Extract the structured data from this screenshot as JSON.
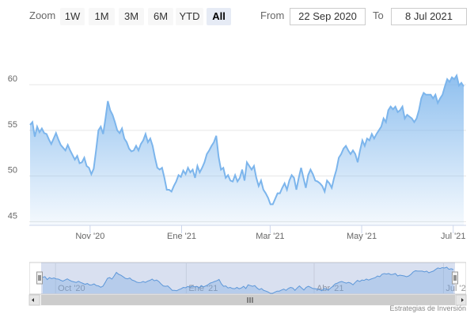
{
  "chart_data": {
    "type": "area",
    "range_selector": {
      "label": "Zoom",
      "buttons": [
        "1W",
        "1M",
        "3M",
        "6M",
        "YTD",
        "All"
      ],
      "selected": 5,
      "from_label": "From",
      "to_label": "To"
    },
    "xlim": [
      "22 Sep 2020",
      "8 Jul 2021"
    ],
    "xticks": [
      {
        "value": "2020-11",
        "label": "Nov '20"
      },
      {
        "value": "2021-01",
        "label": "Ene '21"
      },
      {
        "value": "2021-03",
        "label": "Mar '21"
      },
      {
        "value": "2021-05",
        "label": "May '21"
      },
      {
        "value": "2021-07",
        "label": "Jul '21"
      }
    ],
    "navigator_xticks": [
      {
        "value": "2020-10",
        "label": "Oct '20"
      },
      {
        "value": "2021-01",
        "label": "Ene '21"
      },
      {
        "value": "2021-04",
        "label": "Abr '21"
      },
      {
        "value": "2021-07",
        "label": "Jul '21"
      }
    ],
    "ylim": [
      44.6,
      65.2
    ],
    "yticks": [
      45,
      50,
      55,
      60
    ],
    "grid": true,
    "color": "#7cb5ec",
    "credits": "Estrategias de Inversión",
    "values": [
      55.6,
      55.9,
      54.3,
      55.4,
      54.8,
      55.2,
      54.7,
      54.6,
      54.0,
      53.5,
      54.1,
      54.7,
      54.0,
      53.4,
      53.1,
      52.8,
      53.4,
      52.8,
      52.3,
      51.8,
      52.2,
      51.4,
      51.5,
      52.0,
      51.1,
      50.9,
      50.2,
      50.8,
      52.8,
      55.0,
      55.4,
      54.6,
      56.3,
      58.2,
      57.2,
      56.7,
      55.9,
      55.0,
      54.7,
      55.2,
      54.1,
      53.7,
      53.0,
      52.7,
      52.8,
      53.3,
      52.8,
      53.5,
      53.9,
      54.6,
      53.7,
      54.1,
      53.3,
      52.0,
      50.9,
      50.7,
      50.9,
      49.8,
      48.5,
      48.5,
      48.3,
      48.9,
      49.4,
      50.1,
      49.9,
      50.6,
      50.2,
      50.9,
      50.4,
      50.7,
      49.8,
      51.1,
      50.4,
      50.9,
      51.5,
      52.4,
      52.8,
      53.3,
      53.7,
      54.4,
      52.1,
      50.7,
      50.9,
      49.8,
      50.1,
      49.5,
      49.4,
      50.1,
      49.4,
      49.8,
      50.7,
      49.5,
      51.5,
      51.1,
      50.7,
      51.1,
      49.8,
      48.9,
      49.5,
      48.5,
      48.1,
      47.6,
      46.9,
      46.9,
      47.5,
      48.1,
      48.1,
      48.7,
      49.2,
      48.5,
      49.5,
      50.1,
      49.8,
      48.5,
      49.8,
      50.9,
      49.8,
      48.7,
      50.1,
      50.7,
      50.2,
      49.5,
      49.4,
      49.2,
      48.9,
      48.3,
      49.5,
      49.2,
      48.7,
      49.8,
      50.7,
      52.0,
      52.4,
      53.0,
      53.3,
      52.8,
      52.4,
      52.8,
      52.4,
      51.5,
      52.8,
      53.9,
      53.3,
      54.1,
      53.9,
      54.6,
      54.1,
      54.6,
      55.0,
      55.4,
      56.3,
      55.9,
      57.2,
      57.6,
      57.3,
      57.6,
      57.0,
      57.2,
      57.6,
      56.3,
      56.7,
      56.5,
      56.3,
      55.9,
      56.3,
      57.2,
      58.5,
      59.1,
      58.9,
      58.9,
      58.9,
      58.5,
      58.9,
      58.0,
      58.5,
      58.9,
      59.8,
      60.6,
      60.3,
      60.8,
      60.6,
      61.0,
      59.9,
      60.2,
      59.8
    ]
  }
}
